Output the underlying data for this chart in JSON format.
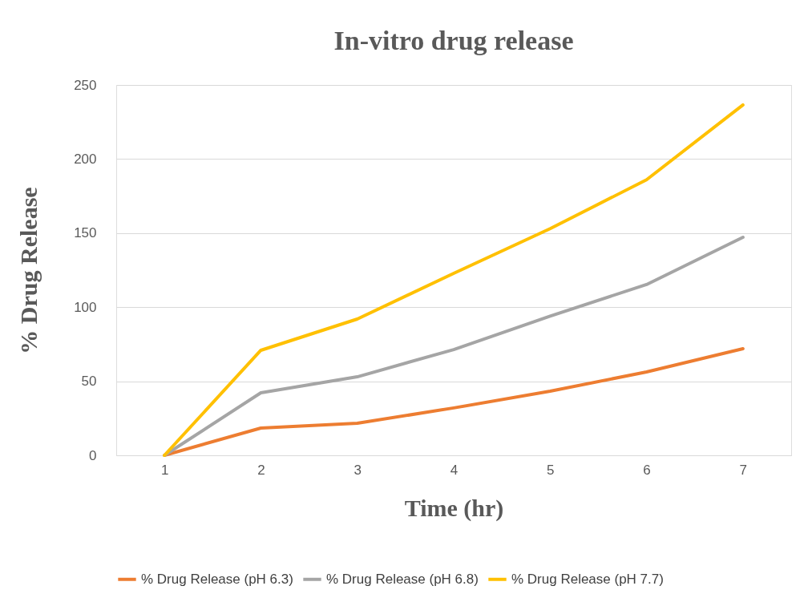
{
  "chart_data": {
    "type": "line",
    "title": "In-vitro drug release",
    "xlabel": "Time (hr)",
    "ylabel": "% Drug Release",
    "categories": [
      "1",
      "2",
      "3",
      "4",
      "5",
      "6",
      "7"
    ],
    "series": [
      {
        "name": "% Drug Release (pH 6.3)",
        "color": "#ed7d31",
        "values": [
          0,
          18.4,
          21.6,
          32,
          43.3,
          56.3,
          72
        ]
      },
      {
        "name": "% Drug Release (pH 6.8)",
        "color": "#a5a5a5",
        "values": [
          0,
          42.2,
          53,
          71.4,
          94,
          115.3,
          147.2
        ]
      },
      {
        "name": "% Drug Release (pH 7.7)",
        "color": "#ffc000",
        "values": [
          0,
          70.9,
          92,
          122.8,
          153,
          186,
          236.5
        ]
      }
    ],
    "ylim": [
      0,
      250
    ],
    "yticks": [
      0,
      50,
      100,
      150,
      200,
      250
    ],
    "grid": "y",
    "legend": "bottom",
    "marker": "none",
    "line_style": "solid"
  }
}
